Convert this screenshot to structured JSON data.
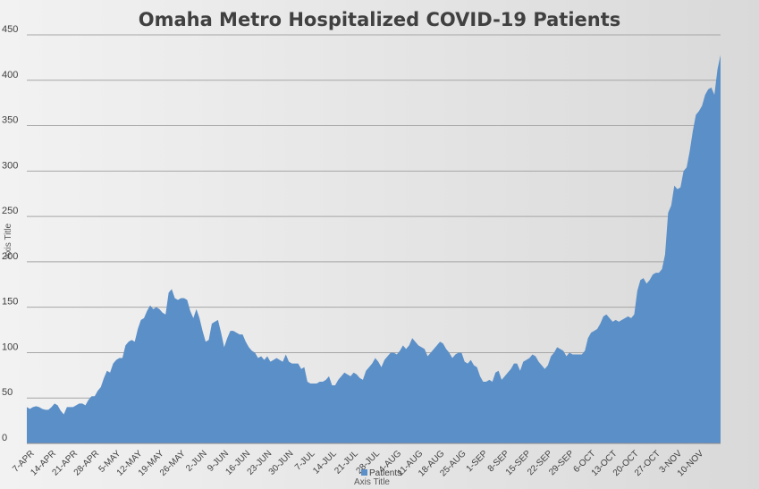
{
  "chart_data": {
    "type": "area",
    "title": "Omaha Metro Hospitalized COVID-19 Patients",
    "xlabel": "Axis Title",
    "ylabel": "Axis Title",
    "ylim": [
      0,
      450
    ],
    "yticks": [
      0,
      50,
      100,
      150,
      200,
      250,
      300,
      350,
      400,
      450
    ],
    "grid": true,
    "legend": "bottom",
    "color": "#5b8fc7",
    "xtick_labels": [
      "7-APR",
      "14-APR",
      "21-APR",
      "28-APR",
      "5-MAY",
      "12-MAY",
      "19-MAY",
      "26-MAY",
      "2-JUN",
      "9-JUN",
      "16-JUN",
      "23-JUN",
      "30-JUN",
      "7-JUL",
      "14-JUL",
      "21-JUL",
      "28-JUL",
      "4-AUG",
      "11-AUG",
      "18-AUG",
      "25-AUG",
      "1-SEP",
      "8-SEP",
      "15-SEP",
      "22-SEP",
      "29-SEP",
      "6-OCT",
      "13-OCT",
      "20-OCT",
      "27-OCT",
      "3-NOV",
      "10-NOV"
    ],
    "series": [
      {
        "name": "Patients",
        "values": [
          40,
          38,
          40,
          41,
          40,
          38,
          37,
          37,
          40,
          44,
          42,
          36,
          32,
          40,
          40,
          40,
          42,
          44,
          44,
          42,
          48,
          52,
          52,
          58,
          62,
          72,
          80,
          78,
          88,
          92,
          94,
          94,
          108,
          112,
          114,
          112,
          126,
          136,
          138,
          146,
          152,
          148,
          150,
          148,
          144,
          142,
          166,
          170,
          160,
          158,
          160,
          160,
          158,
          146,
          138,
          148,
          138,
          124,
          112,
          114,
          132,
          134,
          136,
          122,
          106,
          116,
          124,
          124,
          122,
          120,
          120,
          112,
          106,
          102,
          100,
          94,
          96,
          92,
          96,
          90,
          92,
          94,
          92,
          90,
          98,
          90,
          88,
          88,
          88,
          82,
          84,
          68,
          66,
          66,
          66,
          68,
          68,
          70,
          74,
          64,
          64,
          70,
          74,
          78,
          76,
          74,
          78,
          76,
          72,
          70,
          80,
          84,
          88,
          94,
          90,
          84,
          92,
          96,
          100,
          100,
          98,
          102,
          108,
          104,
          108,
          116,
          112,
          108,
          106,
          104,
          96,
          100,
          104,
          108,
          112,
          110,
          104,
          100,
          94,
          98,
          100,
          100,
          90,
          88,
          92,
          86,
          84,
          74,
          68,
          68,
          70,
          68,
          78,
          80,
          70,
          74,
          78,
          82,
          88,
          88,
          80,
          90,
          92,
          94,
          98,
          96,
          90,
          86,
          82,
          86,
          96,
          100,
          106,
          104,
          102,
          96,
          100,
          98,
          98,
          98,
          98,
          102,
          116,
          122,
          124,
          126,
          132,
          140,
          142,
          138,
          134,
          136,
          134,
          136,
          138,
          140,
          138,
          142,
          168,
          180,
          182,
          176,
          180,
          186,
          188,
          188,
          192,
          208,
          254,
          262,
          284,
          280,
          282,
          300,
          304,
          322,
          344,
          362,
          366,
          372,
          384,
          390,
          392,
          384,
          412,
          428
        ]
      }
    ]
  }
}
